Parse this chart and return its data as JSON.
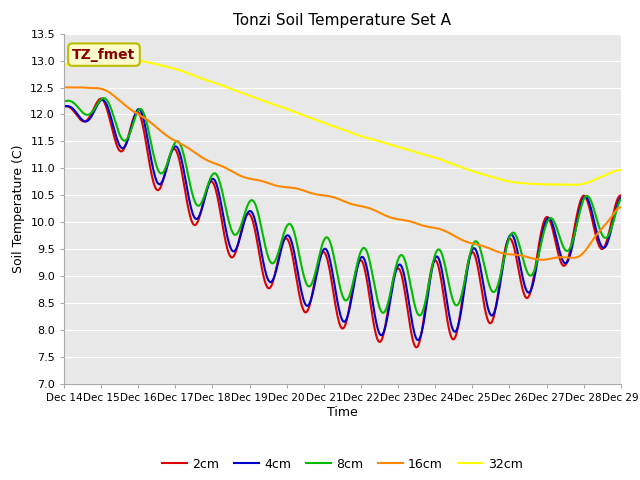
{
  "title": "Tonzi Soil Temperature Set A",
  "xlabel": "Time",
  "ylabel": "Soil Temperature (C)",
  "ylim": [
    7.0,
    13.5
  ],
  "annotation_text": "TZ_fmet",
  "annotation_bg": "#ffffcc",
  "annotation_edge": "#aaaaaa",
  "annotation_color": "#880000",
  "grid_color": "white",
  "series_colors": {
    "2cm": "#dd0000",
    "4cm": "#0000cc",
    "8cm": "#00bb00",
    "16cm": "#ff8800",
    "32cm": "#ffff00"
  },
  "xtick_labels": [
    "Dec 14",
    "Dec 15",
    "Dec 16",
    "Dec 17",
    "Dec 18",
    "Dec 19",
    "Dec 20",
    "Dec 21",
    "Dec 22",
    "Dec 23",
    "Dec 24",
    "Dec 25",
    "Dec 26",
    "Dec 27",
    "Dec 28",
    "Dec 29"
  ],
  "ytick_labels": [
    7.0,
    7.5,
    8.0,
    8.5,
    9.0,
    9.5,
    10.0,
    10.5,
    11.0,
    11.5,
    12.0,
    12.5,
    13.0,
    13.5
  ],
  "legend_entries": [
    "2cm",
    "4cm",
    "8cm",
    "16cm",
    "32cm"
  ]
}
